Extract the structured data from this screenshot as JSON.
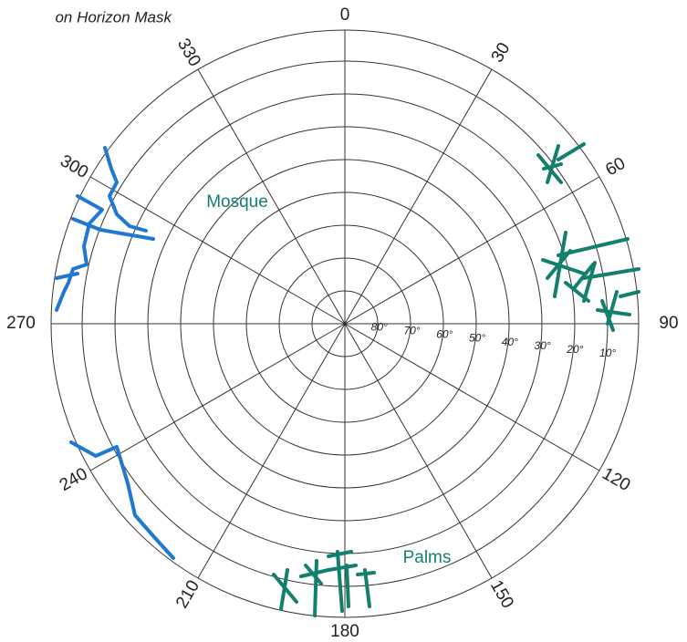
{
  "title": "on Horizon Mask",
  "azimuth_labels": [
    "0",
    "30",
    "60",
    "90",
    "120",
    "150",
    "180",
    "210",
    "240",
    "270",
    "300",
    "330"
  ],
  "elevation_labels": [
    "80°",
    "70°",
    "60°",
    "50°",
    "40°",
    "30°",
    "20°",
    "10°"
  ],
  "annotations": {
    "mosque": "Mosque",
    "palms": "Palms"
  }
}
